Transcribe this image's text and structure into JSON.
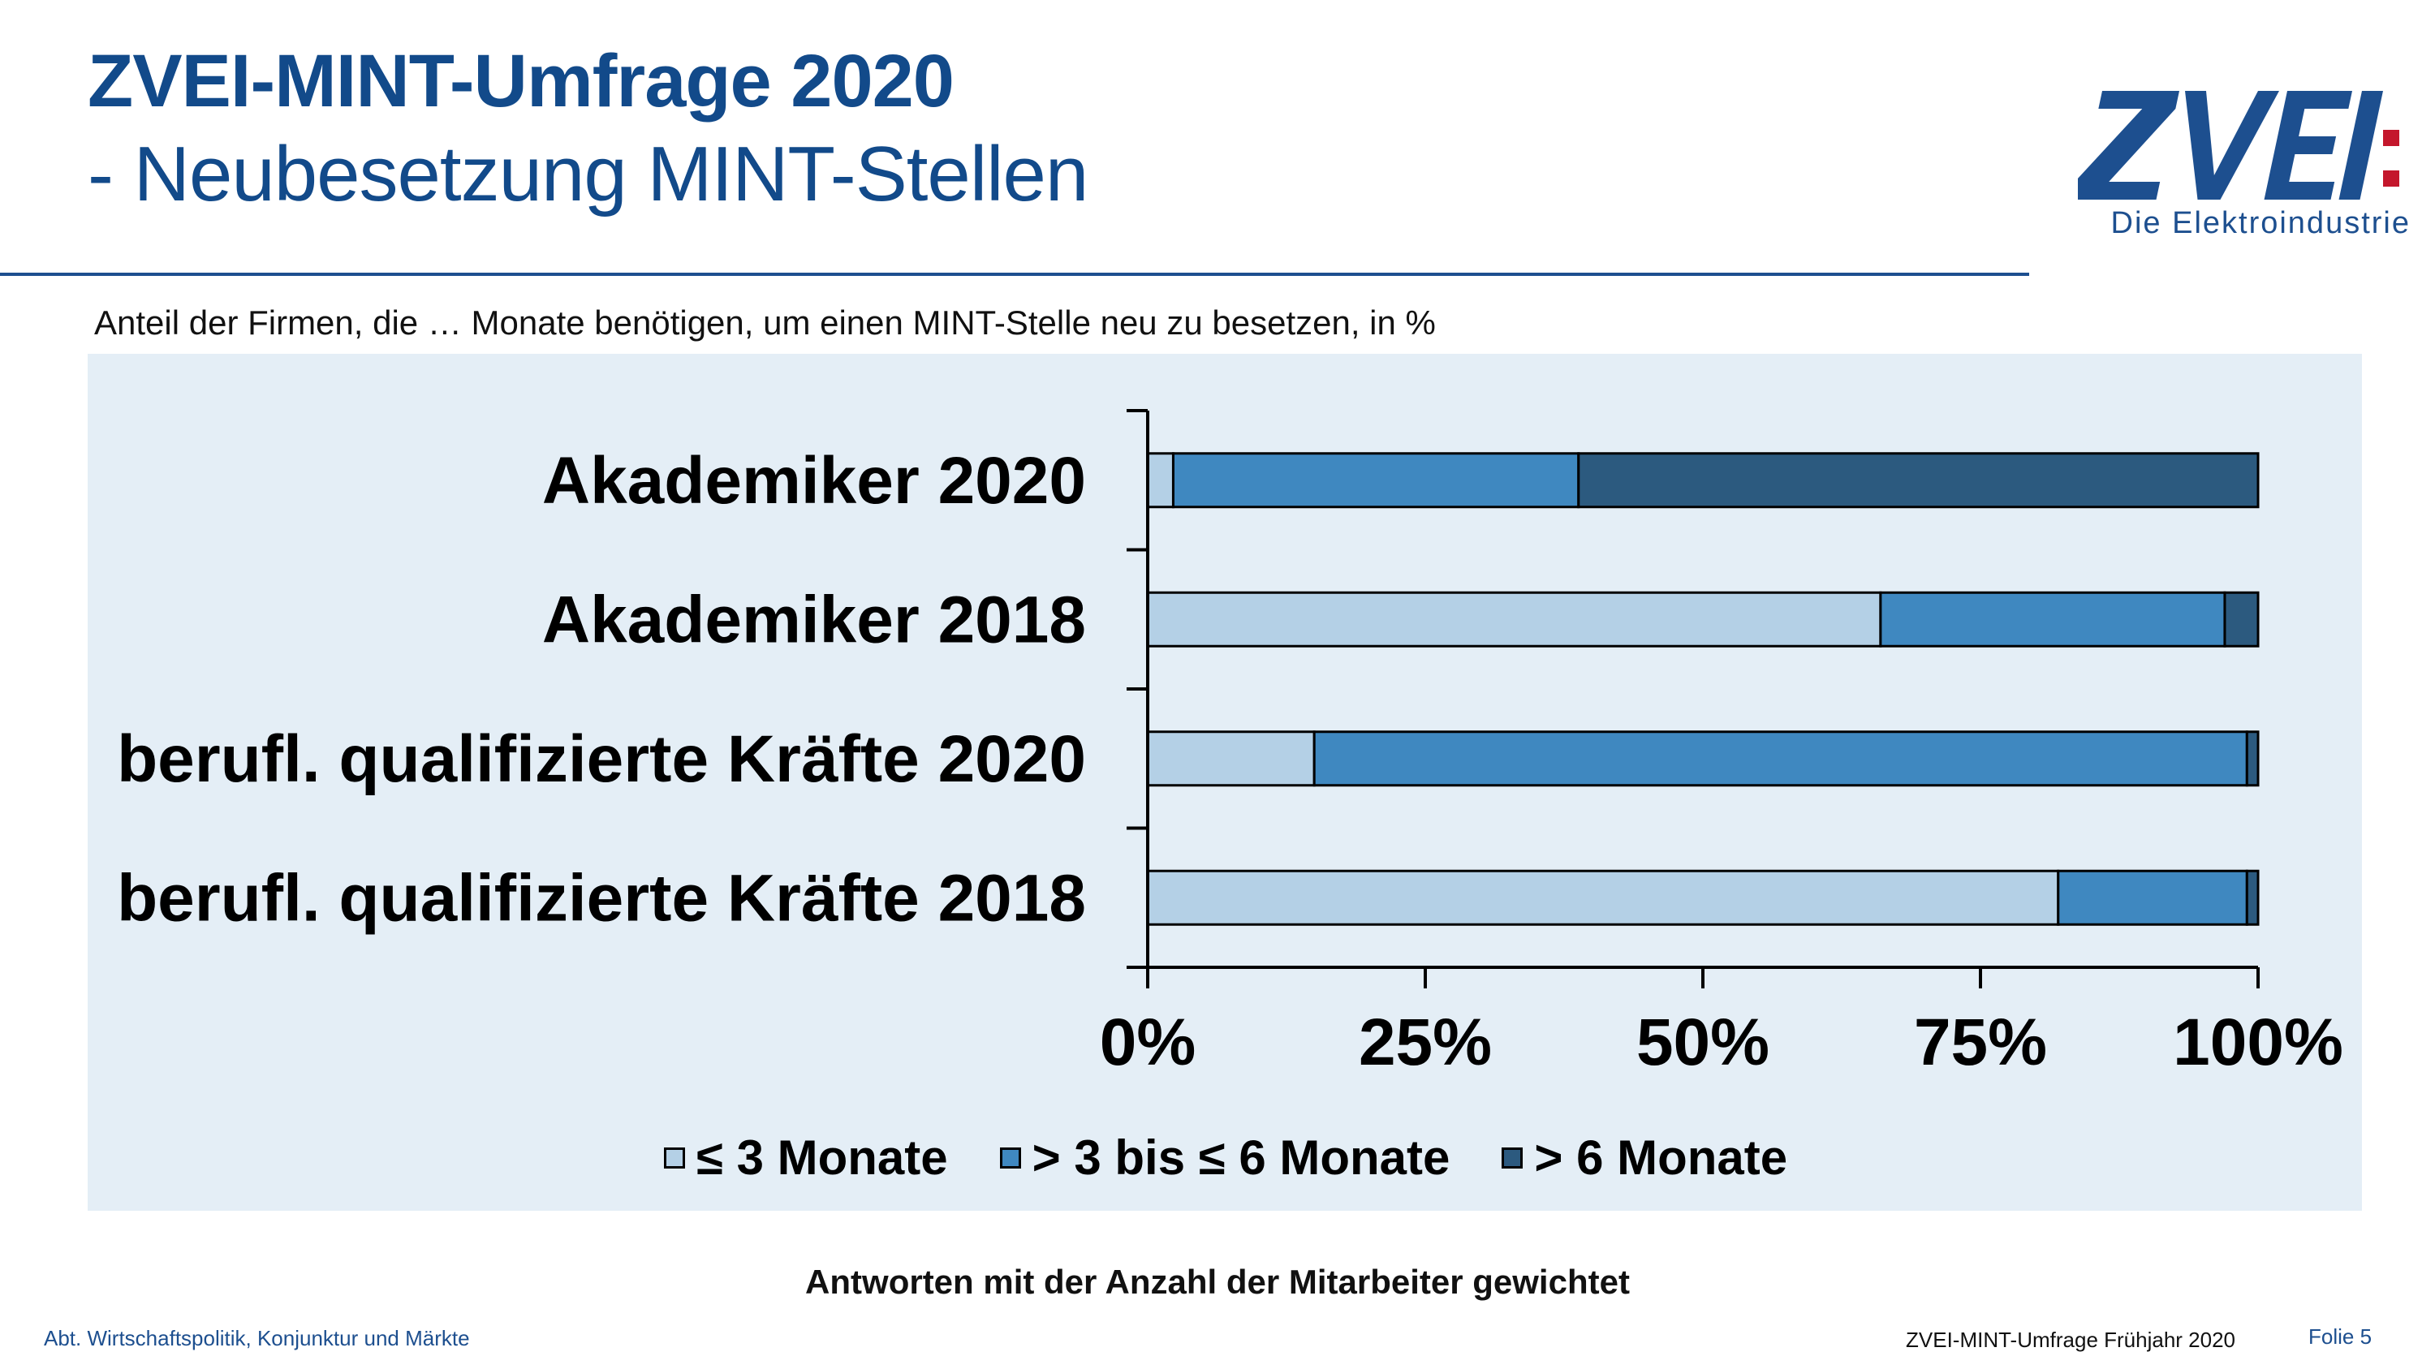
{
  "header": {
    "title": "ZVEI-MINT-Umfrage 2020",
    "subtitle": "- Neubesetzung MINT-Stellen"
  },
  "logo": {
    "wordmark": "ZVEI:",
    "tagline": "Die Elektroindustrie",
    "colors": {
      "text": "#1d4f8f",
      "colon": "#c4172c"
    }
  },
  "chart_subtitle": "Anteil der Firmen, die … Monate benötigen, um einen MINT-Stelle neu zu besetzen, in %",
  "chart_data": {
    "type": "bar",
    "orientation": "horizontal",
    "stacked": "percent",
    "categories": [
      "Akademiker 2020",
      "Akademiker 2018",
      "berufl. qualifizierte Kräfte 2020",
      "berufl. qualifizierte Kräfte 2018"
    ],
    "series": [
      {
        "name": "≤ 3 Monate",
        "color": "#b4d0e6",
        "values": [
          2.3,
          66,
          15,
          82
        ]
      },
      {
        "name": "> 3 bis ≤ 6 Monate",
        "color": "#3f88c0",
        "values": [
          36.5,
          31,
          84,
          17
        ]
      },
      {
        "name": "> 6 Monate",
        "color": "#2c5a7f",
        "values": [
          61.2,
          3,
          1,
          1
        ]
      }
    ],
    "xlim": [
      0,
      100
    ],
    "x_ticks": [
      "0%",
      "25%",
      "50%",
      "75%",
      "100%"
    ],
    "legend_position": "bottom",
    "grid": false
  },
  "footnote": "Antworten mit der Anzahl der Mitarbeiter gewichtet",
  "footer": {
    "left": "Abt. Wirtschaftspolitik, Konjunktur und Märkte",
    "middle": "ZVEI-MINT-Umfrage Frühjahr 2020",
    "right": "Folie 5"
  }
}
